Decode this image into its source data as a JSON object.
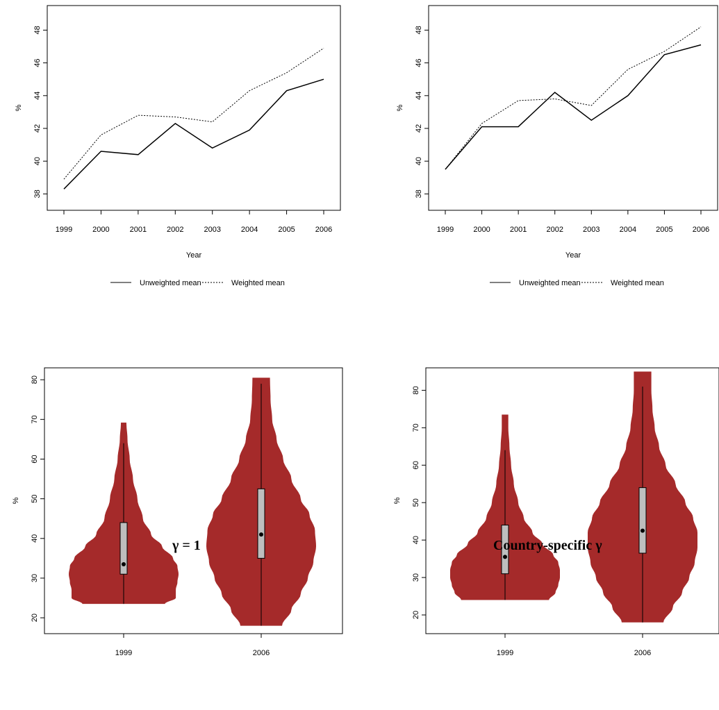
{
  "captions": {
    "left": "γ = 1",
    "right": "Country-specific γ"
  },
  "chart_data": [
    {
      "type": "line",
      "x": [
        "1999",
        "2000",
        "2001",
        "2002",
        "2003",
        "2004",
        "2005",
        "2006"
      ],
      "xlabel": "Year",
      "ylabel": "%",
      "ylim": [
        37,
        49.5
      ],
      "yticks": [
        38,
        40,
        42,
        44,
        46,
        48
      ],
      "grid": false,
      "legend_position": "bottom",
      "series": [
        {
          "name": "Unweighted mean",
          "line_style": "solid",
          "values": [
            38.3,
            40.6,
            40.4,
            42.3,
            40.8,
            41.9,
            44.3,
            45.0
          ]
        },
        {
          "name": "Weighted mean",
          "line_style": "dotted",
          "values": [
            38.9,
            41.6,
            42.8,
            42.7,
            42.4,
            44.3,
            45.4,
            46.9
          ]
        }
      ]
    },
    {
      "type": "line",
      "x": [
        "1999",
        "2000",
        "2001",
        "2002",
        "2003",
        "2004",
        "2005",
        "2006"
      ],
      "xlabel": "Year",
      "ylabel": "%",
      "ylim": [
        37,
        49.5
      ],
      "yticks": [
        38,
        40,
        42,
        44,
        46,
        48
      ],
      "grid": false,
      "legend_position": "bottom",
      "series": [
        {
          "name": "Unweighted mean",
          "line_style": "solid",
          "values": [
            39.5,
            42.1,
            42.1,
            44.2,
            42.5,
            44.0,
            46.5,
            47.1
          ]
        },
        {
          "name": "Weighted mean",
          "line_style": "dotted",
          "values": [
            39.5,
            42.3,
            43.7,
            43.8,
            43.4,
            45.6,
            46.7,
            48.2
          ]
        }
      ]
    },
    {
      "type": "violin",
      "categories": [
        "1999",
        "2006"
      ],
      "ylabel": "%",
      "ylim": [
        16,
        83
      ],
      "yticks": [
        20,
        30,
        40,
        50,
        60,
        70,
        80
      ],
      "fill_color": "#a52a2a",
      "violins": [
        {
          "min": 23.5,
          "q1": 31,
          "median": 33.5,
          "q3": 44,
          "whisker_high": 64,
          "max": 69.2,
          "density": [
            [
              23.5,
              0.75
            ],
            [
              25,
              0.95
            ],
            [
              27,
              0.95
            ],
            [
              29,
              0.98
            ],
            [
              31,
              1.0
            ],
            [
              33,
              0.98
            ],
            [
              35,
              0.9
            ],
            [
              38,
              0.7
            ],
            [
              41,
              0.5
            ],
            [
              45,
              0.35
            ],
            [
              50,
              0.25
            ],
            [
              55,
              0.17
            ],
            [
              60,
              0.11
            ],
            [
              65,
              0.07
            ],
            [
              69.2,
              0.05
            ]
          ]
        },
        {
          "min": 18,
          "q1": 35,
          "median": 41,
          "q3": 52.5,
          "whisker_high": 79,
          "max": 80.5,
          "density": [
            [
              18,
              0.38
            ],
            [
              22,
              0.55
            ],
            [
              26,
              0.72
            ],
            [
              30,
              0.85
            ],
            [
              34,
              0.95
            ],
            [
              38,
              1.0
            ],
            [
              42,
              0.98
            ],
            [
              46,
              0.88
            ],
            [
              50,
              0.72
            ],
            [
              55,
              0.55
            ],
            [
              60,
              0.4
            ],
            [
              65,
              0.28
            ],
            [
              70,
              0.2
            ],
            [
              75,
              0.17
            ],
            [
              80.5,
              0.16
            ]
          ]
        }
      ]
    },
    {
      "type": "violin",
      "categories": [
        "1999",
        "2006"
      ],
      "ylabel": "%",
      "ylim": [
        15,
        86
      ],
      "yticks": [
        20,
        30,
        40,
        50,
        60,
        70,
        80
      ],
      "fill_color": "#a52a2a",
      "violins": [
        {
          "min": 24,
          "q1": 31,
          "median": 35.5,
          "q3": 44,
          "whisker_high": 64,
          "max": 73.5,
          "density": [
            [
              24,
              0.8
            ],
            [
              26,
              0.92
            ],
            [
              28,
              0.97
            ],
            [
              30,
              1.0
            ],
            [
              32,
              1.0
            ],
            [
              34,
              0.97
            ],
            [
              36,
              0.88
            ],
            [
              39,
              0.68
            ],
            [
              42,
              0.5
            ],
            [
              46,
              0.34
            ],
            [
              50,
              0.24
            ],
            [
              55,
              0.16
            ],
            [
              60,
              0.11
            ],
            [
              65,
              0.08
            ],
            [
              70,
              0.06
            ],
            [
              73.5,
              0.06
            ]
          ]
        },
        {
          "min": 18,
          "q1": 36.5,
          "median": 42.5,
          "q3": 54,
          "whisker_high": 81,
          "max": 85,
          "density": [
            [
              18,
              0.38
            ],
            [
              22,
              0.55
            ],
            [
              26,
              0.72
            ],
            [
              30,
              0.85
            ],
            [
              34,
              0.95
            ],
            [
              38,
              1.0
            ],
            [
              42,
              1.0
            ],
            [
              46,
              0.92
            ],
            [
              50,
              0.78
            ],
            [
              55,
              0.6
            ],
            [
              60,
              0.42
            ],
            [
              65,
              0.3
            ],
            [
              70,
              0.22
            ],
            [
              75,
              0.18
            ],
            [
              80,
              0.16
            ],
            [
              85,
              0.16
            ]
          ]
        }
      ]
    }
  ]
}
